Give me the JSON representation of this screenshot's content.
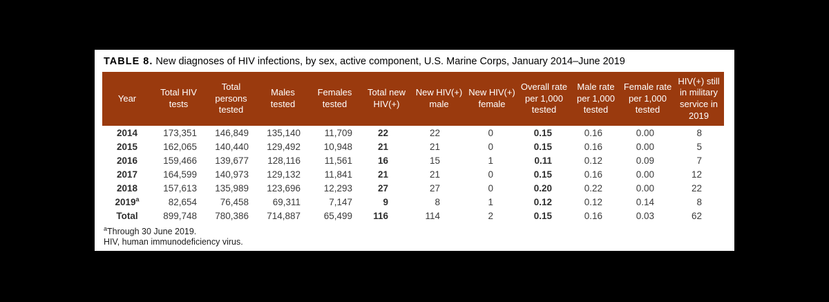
{
  "page": {
    "background_color": "#000000",
    "card_background_color": "#ffffff"
  },
  "table": {
    "title_label": "TABLE 8.",
    "title_text": "New diagnoses of HIV infections, by sex, active component, U.S. Marine Corps, January 2014–June 2019",
    "header_bg": "#9a3a0e",
    "header_text_color": "#ffffff",
    "columns": [
      "Year",
      "Total HIV tests",
      "Total persons tested",
      "Males tested",
      "Females tested",
      "Total new HIV(+)",
      "New HIV(+) male",
      "New HIV(+) female",
      "Overall rate per 1,000 tested",
      "Male rate per 1,000 tested",
      "Female rate per 1,000 tested",
      "HIV(+) still in military service in 2019"
    ],
    "rows": [
      {
        "year": "2014",
        "sup": "",
        "values": [
          "173,351",
          "146,849",
          "135,140",
          "11,709",
          "22",
          "22",
          "0",
          "0.15",
          "0.16",
          "0.00",
          "8"
        ]
      },
      {
        "year": "2015",
        "sup": "",
        "values": [
          "162,065",
          "140,440",
          "129,492",
          "10,948",
          "21",
          "21",
          "0",
          "0.15",
          "0.16",
          "0.00",
          "5"
        ]
      },
      {
        "year": "2016",
        "sup": "",
        "values": [
          "159,466",
          "139,677",
          "128,116",
          "11,561",
          "16",
          "15",
          "1",
          "0.11",
          "0.12",
          "0.09",
          "7"
        ]
      },
      {
        "year": "2017",
        "sup": "",
        "values": [
          "164,599",
          "140,973",
          "129,132",
          "11,841",
          "21",
          "21",
          "0",
          "0.15",
          "0.16",
          "0.00",
          "12"
        ]
      },
      {
        "year": "2018",
        "sup": "",
        "values": [
          "157,613",
          "135,989",
          "123,696",
          "12,293",
          "27",
          "27",
          "0",
          "0.20",
          "0.22",
          "0.00",
          "22"
        ]
      },
      {
        "year": "2019",
        "sup": "a",
        "values": [
          "82,654",
          "76,458",
          "69,311",
          "7,147",
          "9",
          "8",
          "1",
          "0.12",
          "0.12",
          "0.14",
          "8"
        ]
      },
      {
        "year": "Total",
        "sup": "",
        "values": [
          "899,748",
          "780,386",
          "714,887",
          "65,499",
          "116",
          "114",
          "2",
          "0.15",
          "0.16",
          "0.03",
          "62"
        ]
      }
    ],
    "bold_value_columns": [
      4,
      7
    ],
    "footnotes": [
      {
        "sup": "a",
        "text": "Through 30 June 2019."
      },
      {
        "sup": "",
        "text": "HIV, human immunodeficiency virus."
      }
    ]
  }
}
